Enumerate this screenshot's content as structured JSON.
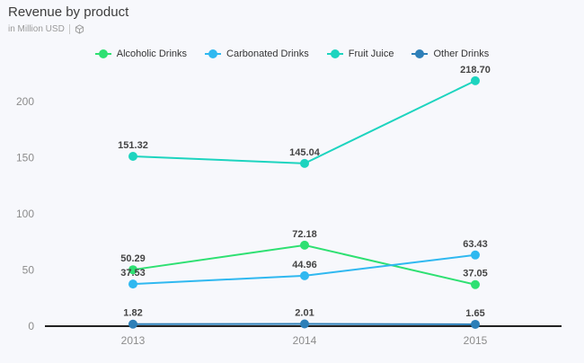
{
  "chart": {
    "title": "Revenue by product",
    "subtitle": "in Million USD"
  },
  "icons": {
    "subtitle_icon": "cube-icon"
  },
  "chart_data": {
    "type": "line",
    "title": "Revenue by product",
    "subtitle": "in Million USD",
    "categories": [
      "2013",
      "2014",
      "2015"
    ],
    "xlabel": "",
    "ylabel": "",
    "ylim": [
      0,
      225
    ],
    "yticks": [
      0,
      50,
      100,
      150,
      200
    ],
    "grid": false,
    "legend_position": "top-center",
    "series": [
      {
        "name": "Alcoholic Drinks",
        "color": "#2ee072",
        "values": [
          50.29,
          72.18,
          37.05
        ],
        "labels": [
          "50.29",
          "72.18",
          "37.05"
        ]
      },
      {
        "name": "Carbonated Drinks",
        "color": "#2fb8f0",
        "values": [
          37.53,
          44.96,
          63.43
        ],
        "labels": [
          "37.53",
          "44.96",
          "63.43"
        ]
      },
      {
        "name": "Fruit Juice",
        "color": "#1dd4bf",
        "values": [
          151.32,
          145.04,
          218.7
        ],
        "labels": [
          "151.32",
          "145.04",
          "218.70"
        ]
      },
      {
        "name": "Other Drinks",
        "color": "#2d7fb8",
        "values": [
          1.82,
          2.01,
          1.65
        ],
        "labels": [
          "1.82",
          "2.01",
          "1.65"
        ]
      }
    ]
  }
}
